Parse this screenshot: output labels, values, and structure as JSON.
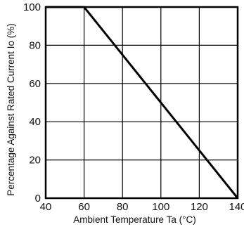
{
  "chart_data": {
    "type": "line",
    "title": "",
    "xlabel": "Ambient Temperature Ta (°C)",
    "ylabel": "Percentage Against Rated Current  Io (%)",
    "xlim": [
      40,
      140
    ],
    "ylim": [
      0,
      100
    ],
    "x_ticks": [
      "40",
      "60",
      "80",
      "100",
      "120",
      "140"
    ],
    "y_ticks": [
      "0",
      "20",
      "40",
      "60",
      "80",
      "100"
    ],
    "grid": true,
    "legend": "none",
    "series": [
      {
        "x": [
          40,
          60,
          140
        ],
        "y": [
          100,
          100,
          0
        ]
      }
    ],
    "colors": {
      "line": "#000000",
      "grid": "#000000"
    }
  }
}
